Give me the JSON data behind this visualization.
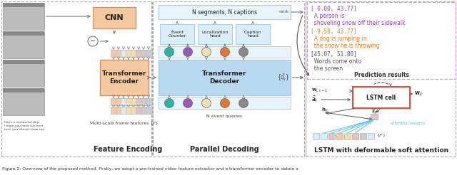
{
  "figure_title": "Figure 2: Overview of the proposed method. Firstly, we adopt a pre-trained video feature extractor and a transformer encoder to obtain a",
  "section1_title": "Feature Encoding",
  "section2_title": "Parallel Decoding",
  "section3_title": "LSTM with deformable soft attention",
  "cnn_label": "CNN",
  "transformer_encoder_label": "Transformer\nEncoder",
  "transformer_decoder_label": "Transformer\nDecoder",
  "multiscale_label": "Multi-scale frame features {fⁱ}",
  "n_segments_label": "N segments, N captions",
  "n_queries_label": "N event queries",
  "event_counter_label": "Event\nCounter",
  "localization_label": "Localization\nhead",
  "caption_label": "Caption\nhead",
  "rank_label": "rank",
  "pred1_bracket": "[ 0.00, 43.77]",
  "pred1_text": "  A person is\n  shoveling snow off their sidewalk",
  "pred2_bracket": "[ 9.58, 43.77]",
  "pred2_text": "  A dog is jumping in\n  the snow he is throwing",
  "pred3_bracket": "[45.07, 51.80]",
  "pred3_text": "  Words come onto\n  the screen",
  "pred_results_label": "Prediction results",
  "lstm_label": "LSTM cell",
  "wt1_label": "w_{i,t-1}",
  "ai_label": "\\u0101_i",
  "hit_label": "h_{jt}",
  "zit_label": "z_{jt}",
  "wit_label": "w_{jt}",
  "ft_label": "{fᵗ}",
  "attn_label": "attention weights",
  "bg_color": "#ffffff",
  "encoder_box_color": "#f5c9a0",
  "decoder_box_color": "#b8d9f0",
  "cnn_box_color": "#f5c9a0",
  "nseg_box_color": "#e8f4fb",
  "head_box_color": "#daedf8",
  "dot_row_box_color": "#e8f4fb",
  "lstm_box_edge": "#e74c3c",
  "pred1_color": "#8e44ad",
  "pred2_color": "#e67e22",
  "pred3_color": "#555555",
  "arrow_color": "#777777",
  "dot_colors": [
    "#2ab5a0",
    "#9b59b6",
    "#f0e0b0",
    "#e07830",
    "#888888"
  ],
  "small_box_colors": [
    "#f5cba7",
    "#f5cba7",
    "#daedf8",
    "#f0e0b0",
    "#f0e0b0",
    "#e8c0c0",
    "#cccccc",
    "#cccccc"
  ],
  "feat_box_colors": [
    "#daedf8",
    "#daedf8",
    "#e8c0c0",
    "#f5cba7",
    "#f0e0b0",
    "#e8c0c0",
    "#cccccc",
    "#daedf8"
  ]
}
